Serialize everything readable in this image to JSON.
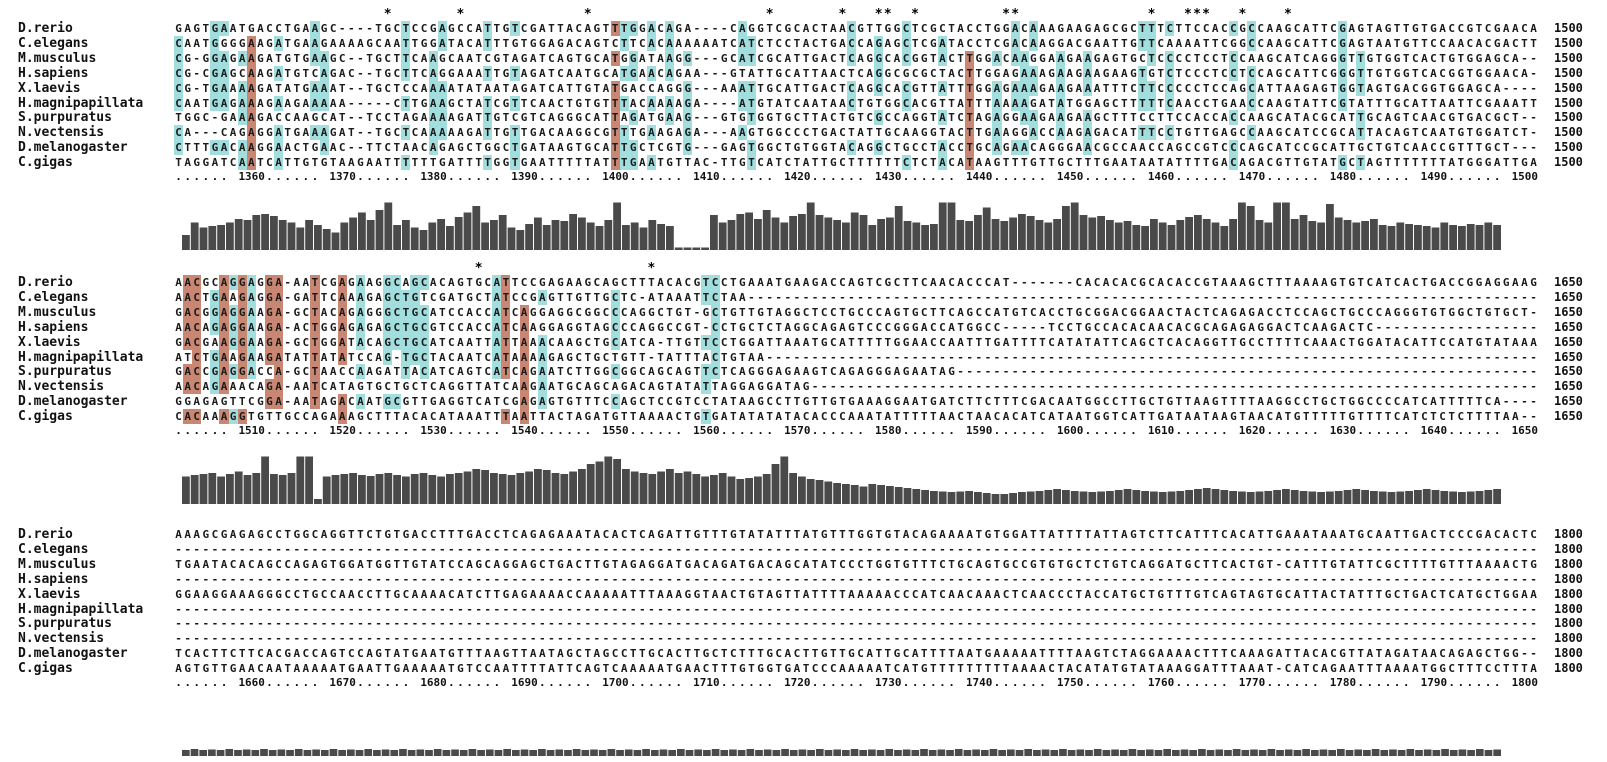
{
  "colors": {
    "identity_high": "#c98773",
    "identity_mid": "#a3dede",
    "histogram": "#4a4a4a"
  },
  "blocks": [
    {
      "end": "1500",
      "start_num": 1350,
      "ruler_labels": [
        "1360",
        "1370",
        "1380",
        "1390",
        "1400",
        "1410",
        "1420",
        "1430",
        "1440",
        "1450",
        "1460",
        "1470",
        "1480",
        "1490",
        "1500"
      ],
      "star_cols": [
        23,
        31,
        45,
        65,
        73,
        77,
        78,
        81,
        91,
        92,
        107,
        111,
        112,
        113,
        117,
        122
      ],
      "rows": [
        {
          "name": "D.rerio",
          "seq": "GAGTGAATGACCTGAAGC----TGCTCCGAGCCATTGTCGATTACAGTTTGGACAGA----CAGGTCGCACTAACGTTGGCTCGCTACCTGGACAAAGAAGAGCGCTTTCTTCCACCGCCAAGCATTCGAGTAGTTGTGACCGTCGAACA"
        },
        {
          "name": "C.elegans",
          "seq": "CAATGGGGAAGATGAAGAAAAGCAATTGGATACATTTGTGGAGACAGTCTTCACAAAAAATCATCTCCTACTGACCAGAGCTCGATACCTCGACAAGGACGAATTGTTCAAAATTCGGCCAAGCATTCGAGTAATGTTCCAACACGACTT"
        },
        {
          "name": "M.musculus",
          "seq": "CG-GGAGAAGATGTGAAGC--TGCTTCAAGCAATCGTAGATCAGTGCATGGATAAGG---GCATCGCATTGACTCAGGCACGGTACTTGGACAAGGAAGAAGAGTGCTCCCCTCCTCCAAGCATCAGGGTTGTGGTCACTGTGGAGCA"
        },
        {
          "name": "H.sapiens",
          "seq": "CG-CGAGCAAGATGTCAGAC--TGCTTCAGGAAATTGTAGATCAATGCATGAACAGAA---GTATTGCATTAACTCAGGCGCGCTACTTGGAGAAAGAAGAAGAAGTGTCTCCCTCCTCCAGCATTCGGGTTGTGGTCACGGTGGAACA"
        },
        {
          "name": "X.laevis",
          "seq": "CG-TGAAAAGATATGAAAT--TGCTCCAAAATATAATAGATCATTGTATGACCAGGG---AAATTGCATTGACTCAGGCACGTTATTTGGAGAAAGAAGAAATTTCTTCCCCCTCCAGCATTAAGAGTGGTAGTGACGGTGGAGCA"
        },
        {
          "name": "H.magnipapillata",
          "seq": "CAATGAGAAAGAAGAAAAA-----CTTGAAGCTATCGTTCAACTGTGTTTACAAAAGA----ATGTATCAATAACTGTGGCACGTTATTTAAAAGATATGGAGCTTTTTCAACCTGAACCAAGTATTCGTATTTGCATTAATTCGAAATT"
        },
        {
          "name": "S.purpuratus",
          "seq": "TGGC-GAAAGACCAAGCAT--TCCTAGAAAAGATTGTCGTCAGGGCATTAGATGAAG---GTGTGGTGCTTACTGTCGCCAGGTATCTAGAGGAAGAAGAAGCTTTCCTTCCACCACCAAGCATACGCATTGCAGTCAACGTGACGCT"
        },
        {
          "name": "N.vectensis",
          "seq": "CA---CAGAGGATGAAAGAT--TGCTCAAAAAGATTGTTGACAAGGCGTTTGAAGAGA---AAGTGGCCCTGACTATTGCAAGGTACTTGAAGGACCAAGAGACATTTCCTGTTGAGCCAAGCATCCGCATTACAGTCAATGTGGATCT"
        },
        {
          "name": "D.melanogaster",
          "seq": "CTTTGACAAGGAACTGAAC--TTCTAACAGAGCTGGCTGATAAGTGCATTGCTCGTG---GAGTGGCTGTGGTACAGGCTGCCTACCTGCAGAACAGGGAACGCCAACCAGCCGTCCCAGCATCCGCATTGCTGTCAACCGTTTGCT"
        },
        {
          "name": "C.gigas",
          "seq": "TAGGATCAATCATTGTGTAAGAATTTTTTGATTTTGGTGAATTTTTATTTGAATGTTAC-TTGTCATCTATTGCTTTTTTCTCTACATAAGTTTGTTGCTTTGAATAATATTTTGACAGACGTTGTATGCTAGTTTTTTTATGGGATTGAAT"
        }
      ],
      "hist": [
        0.3,
        0.55,
        0.45,
        0.48,
        0.5,
        0.55,
        0.62,
        0.6,
        0.7,
        0.72,
        0.68,
        0.6,
        0.55,
        0.45,
        0.6,
        0.5,
        0.42,
        0.35,
        0.55,
        0.65,
        0.75,
        0.6,
        0.8,
        0.95,
        0.5,
        0.6,
        0.45,
        0.4,
        0.55,
        0.62,
        0.48,
        0.66,
        0.75,
        0.88,
        0.55,
        0.6,
        0.7,
        0.45,
        0.4,
        0.52,
        0.65,
        0.5,
        0.6,
        0.58,
        0.72,
        0.65,
        0.55,
        0.48,
        0.6,
        0.95,
        0.5,
        0.55,
        0.45,
        0.6,
        0.52,
        0.48,
        0.05,
        0.05,
        0.05,
        0.05,
        0.7,
        0.55,
        0.6,
        0.72,
        0.75,
        0.62,
        0.8,
        0.65,
        0.55,
        0.68,
        0.72,
        0.95,
        0.7,
        0.65,
        0.6,
        0.55,
        0.75,
        0.7,
        0.5,
        0.62,
        0.65,
        0.88,
        0.58,
        0.55,
        0.5,
        0.52,
        0.95,
        0.95,
        0.6,
        0.58,
        0.7,
        0.85,
        0.62,
        0.58,
        0.65,
        0.72,
        0.68,
        0.6,
        0.55,
        0.62,
        0.88,
        0.95,
        0.7,
        0.65,
        0.68,
        0.6,
        0.55,
        0.58,
        0.5,
        0.48,
        0.62,
        0.55,
        0.5,
        0.6,
        0.66,
        0.7,
        0.62,
        0.55,
        0.48,
        0.62,
        0.95,
        0.88,
        0.6,
        0.55,
        0.95,
        0.95,
        0.62,
        0.7,
        0.58,
        0.55,
        0.92,
        0.65,
        0.6,
        0.55,
        0.58,
        0.62,
        0.5,
        0.48,
        0.55,
        0.52,
        0.5,
        0.48,
        0.45,
        0.55,
        0.5,
        0.48,
        0.52,
        0.5,
        0.55,
        0.5
      ]
    },
    {
      "end": "1650",
      "start_num": 1500,
      "ruler_labels": [
        "1510",
        "1520",
        "1530",
        "1540",
        "1550",
        "1560",
        "1570",
        "1580",
        "1590",
        "1600",
        "1610",
        "1620",
        "1630",
        "1640",
        "1650"
      ],
      "star_cols": [
        33,
        52
      ],
      "rows": [
        {
          "name": "D.rerio",
          "seq": "AACGCAGGAGGA-AATCGAGAAGGCAGCACAGTGCATTCCGAGAAGCAGCTTTACACGTCCTGAAATGAAGACCAGTCGCTTCAACACCCAT-------CACACACGCACACCGTAAAGCTTTAAAAGTGTCATCACTGACCGGAGGAAGG"
        },
        {
          "name": "C.elegans",
          "seq": "AACTGAAGAGGA-GATTCAAAGAGCTGTCGATGCTATCCGAGTTGTTGCTC-ATAAATTCTAA-------------------------------------------------------------------------------------------"
        },
        {
          "name": "M.musculus",
          "seq": "GACGGAGGAAGA-GCTACAGAGGGCTGCATCCACCATCAGGAGGCGGCCCAGGCTGT-GCTGTTGTAGGCTCCTGCCCAGTGCTTCAGCCATGTCACCTGCGGACGGAACTACTCAGAGACCTCCAGCTGCCCAGGGTGTGGCTGTGCT"
        },
        {
          "name": "H.sapiens",
          "seq": "AACAGAGGAAGA-ACTGGAGAGAGCTGCGTCCACCATCAAGGAGGTAGCCCAGGCCGT-CCTGCTCTAGGCAGAGTCCCGGGACCATGGCC-----TCCTGCCACACAACACGCAGAGAGGACTCAAGACTC----------------"
        },
        {
          "name": "X.laevis",
          "seq": "GACGAAGGAAGA-GCTGGATACAGCTGCATCAATTATTAAACAAGCTGCATCA-TTGTTCCTGGATTAAATGCATTTTTGGAACCAATTTGATTTTCATATATTCAGCTCACAGGTTGCCTTTTCAAACTGGATACATTCCATGTATAAA"
        },
        {
          "name": "H.magnipapillata",
          "seq": "ATCTGAAGAAGATATTATATCCAG-TGCTACAATCATAAAAGAGCTGCTGTT-TATTTACTGTAA------------------------------------------------------------------------------------------"
        },
        {
          "name": "S.purpuratus",
          "seq": "GACCGAGGACCA-GCTAACCAAGATTACATCAGTCATCAGAATCTTGGCGGCAGCAGTTCTCAGGGAGAAGTCAGAGGGAGAATAG------------------------------------------------------------------"
        },
        {
          "name": "N.vectensis",
          "seq": "AACAGAAACAGA-AATCATAGTGCTGCTCAGGTTATCAAGAATGCAGCAGACAGTATATTAGGAGGATAG-------------------------------------------------------------------------------------"
        },
        {
          "name": "D.melanogaster",
          "seq": "GGAGAGTTCGGA-AATAGACAATGCGTTGAGGTCATCGAGAGTGTTTCCAGCTCCGTCCTATAAGCCTTGTTGTGAAAGGAATGATCTTCTTTCGACAATGGCCTTGCTGTTAAGTTTTAAGGCCTGCTGGCCCCATCATTTTTCA"
        },
        {
          "name": "C.gigas",
          "seq": "CACAAAGGTGTTGCCAGAAAGCTTTACACATAAATTTAATTACTAGATGTTAAAACTGTGATATATATACACCCAAATATTTTTAACTAACACATCATAATGGTCATTGATAATAAGTAACATGTTTTTGTTTTCATCTCTCTTTTAA"
        }
      ],
      "hist": [
        0.55,
        0.58,
        0.6,
        0.62,
        0.55,
        0.6,
        0.65,
        0.58,
        0.62,
        0.95,
        0.6,
        0.58,
        0.62,
        0.95,
        0.95,
        0.1,
        0.55,
        0.58,
        0.6,
        0.62,
        0.58,
        0.56,
        0.6,
        0.62,
        0.58,
        0.55,
        0.6,
        0.62,
        0.58,
        0.55,
        0.6,
        0.62,
        0.65,
        0.7,
        0.68,
        0.62,
        0.6,
        0.58,
        0.62,
        0.65,
        0.7,
        0.68,
        0.62,
        0.6,
        0.65,
        0.7,
        0.8,
        0.85,
        0.95,
        0.9,
        0.7,
        0.65,
        0.62,
        0.6,
        0.65,
        0.7,
        0.62,
        0.65,
        0.6,
        0.55,
        0.58,
        0.62,
        0.55,
        0.5,
        0.52,
        0.55,
        0.6,
        0.8,
        0.95,
        0.62,
        0.55,
        0.5,
        0.48,
        0.45,
        0.42,
        0.4,
        0.38,
        0.35,
        0.4,
        0.38,
        0.36,
        0.34,
        0.32,
        0.3,
        0.28,
        0.26,
        0.25,
        0.24,
        0.25,
        0.26,
        0.24,
        0.22,
        0.2,
        0.2,
        0.22,
        0.24,
        0.25,
        0.26,
        0.28,
        0.3,
        0.28,
        0.26,
        0.25,
        0.24,
        0.25,
        0.26,
        0.28,
        0.3,
        0.28,
        0.26,
        0.25,
        0.24,
        0.25,
        0.26,
        0.28,
        0.3,
        0.32,
        0.3,
        0.28,
        0.26,
        0.25,
        0.24,
        0.25,
        0.26,
        0.28,
        0.3,
        0.28,
        0.26,
        0.25,
        0.24,
        0.25,
        0.26,
        0.28,
        0.3,
        0.28,
        0.26,
        0.25,
        0.24,
        0.25,
        0.26,
        0.28,
        0.3,
        0.28,
        0.26,
        0.25,
        0.24,
        0.25,
        0.26,
        0.28,
        0.3
      ]
    },
    {
      "end": "1800",
      "start_num": 1650,
      "ruler_labels": [
        "1660",
        "1670",
        "1680",
        "1690",
        "1700",
        "1710",
        "1720",
        "1730",
        "1740",
        "1750",
        "1760",
        "1770",
        "1780",
        "1790",
        "1800"
      ],
      "star_cols": [],
      "rows": [
        {
          "name": "D.rerio",
          "seq": "AAAGCGAGAGCCTGGCAGGTTCTGTGACCTTTGACCTCAGAGAAATACACTCAGATTGTTTGTATATTTATGTTTGGTGTACAGAAAATGTGGATTATTTTATTAGTCTTCATTTCACATTGAAATAAATGCAATTGACTCCCGACACTC"
        },
        {
          "name": "C.elegans",
          "seq": "------------------------------------------------------------------------------------------------------------------------------------------------------"
        },
        {
          "name": "M.musculus",
          "seq": "TGAATACACAGCCAGAGTGGATGGTTGTATCCAGCAGGAGCTGACTTGTAGAGGATGACAGATGACAGCATATCCCTGGTGTTTCTGCAGTGCCGTGTGCTCTGTCAGGATGCTTCACTGT-CATTTGTATTCGCTTTTGTTTAAAACTG"
        },
        {
          "name": "H.sapiens",
          "seq": "------------------------------------------------------------------------------------------------------------------------------------------------------"
        },
        {
          "name": "X.laevis",
          "seq": "GGAAGGAAAGGGCCTGCCAACCTTGCAAAACATCTTGAGAAAACCAAAAATTTAAAGGTAACTGTAGTTATTTTAAAAACCCATCAACAAACTCAACCCTACCATGCTGTTTGTCAGTAGTGCATTACTATTTGCTGACTCATGCTGGAA"
        },
        {
          "name": "H.magnipapillata",
          "seq": "------------------------------------------------------------------------------------------------------------------------------------------------------"
        },
        {
          "name": "S.purpuratus",
          "seq": "------------------------------------------------------------------------------------------------------------------------------------------------------"
        },
        {
          "name": "N.vectensis",
          "seq": "------------------------------------------------------------------------------------------------------------------------------------------------------"
        },
        {
          "name": "D.melanogaster",
          "seq": "TCACTTCTTCACGACCAGTCCAGTATGAATGTTTAAGTTAATAGCTAGCCTTGCACTTGCTCTTTGCACTTGTTGCATTGCATTTTAATGAAAAATTTTAAGTCTAGGAAAACTTTCAAAGATTACACGTTATAGATAACAGAGCTGG"
        },
        {
          "name": "C.gigas",
          "seq": "AGTGTTGAACAATAAAAATGAATTGAAAAATGTCCAATTTTATTCAGTCAAAAATGAACTTTGTGGTGATCCCAAAAATCATGTTTTTTTTTAAAACTACATATGTATAAAGGATTTAAAT-CATCAGAATTTAAAATGGCTTTCCTTTA"
        }
      ],
      "hist": [
        0.12,
        0.14,
        0.12,
        0.13,
        0.12,
        0.14,
        0.12,
        0.13,
        0.12,
        0.14,
        0.12,
        0.13,
        0.12,
        0.14,
        0.12,
        0.13,
        0.12,
        0.14,
        0.12,
        0.13,
        0.12,
        0.14,
        0.12,
        0.13,
        0.12,
        0.14,
        0.12,
        0.13,
        0.12,
        0.14,
        0.12,
        0.13,
        0.12,
        0.14,
        0.12,
        0.13,
        0.12,
        0.14,
        0.12,
        0.13,
        0.12,
        0.14,
        0.12,
        0.13,
        0.12,
        0.14,
        0.12,
        0.13,
        0.12,
        0.14,
        0.12,
        0.13,
        0.12,
        0.14,
        0.12,
        0.13,
        0.12,
        0.14,
        0.12,
        0.13,
        0.12,
        0.14,
        0.12,
        0.13,
        0.12,
        0.14,
        0.12,
        0.13,
        0.12,
        0.14,
        0.12,
        0.13,
        0.12,
        0.14,
        0.12,
        0.13,
        0.12,
        0.14,
        0.12,
        0.13,
        0.12,
        0.14,
        0.12,
        0.13,
        0.12,
        0.14,
        0.12,
        0.13,
        0.12,
        0.14,
        0.12,
        0.13,
        0.12,
        0.14,
        0.12,
        0.13,
        0.12,
        0.14,
        0.12,
        0.13,
        0.12,
        0.14,
        0.12,
        0.13,
        0.12,
        0.14,
        0.12,
        0.13,
        0.12,
        0.14,
        0.12,
        0.13,
        0.12,
        0.14,
        0.12,
        0.13,
        0.12,
        0.14,
        0.12,
        0.13,
        0.12,
        0.14,
        0.12,
        0.13,
        0.12,
        0.14,
        0.12,
        0.13,
        0.12,
        0.14,
        0.12,
        0.13,
        0.12,
        0.14,
        0.12,
        0.13,
        0.12,
        0.14,
        0.12,
        0.13,
        0.12,
        0.14,
        0.12,
        0.13,
        0.12,
        0.14,
        0.12,
        0.13,
        0.12,
        0.14,
        0.12,
        0.13
      ]
    }
  ]
}
